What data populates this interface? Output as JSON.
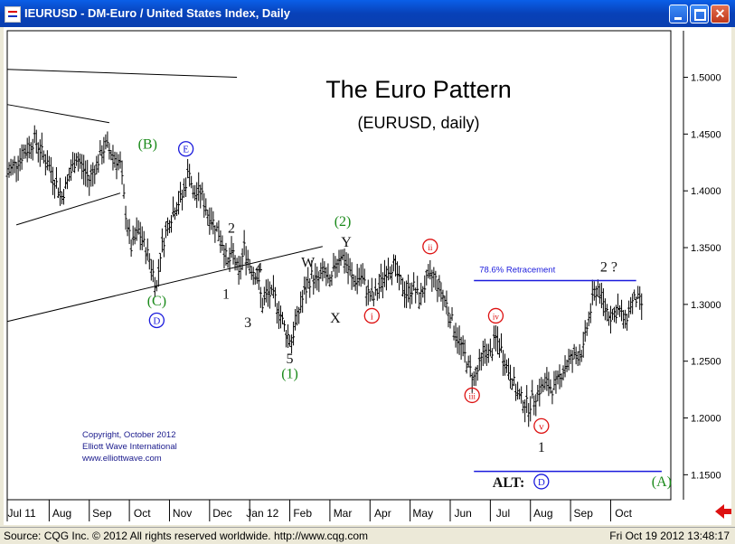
{
  "window": {
    "title": "IEURUSD - DM-Euro / United States Index, Daily"
  },
  "chart_data": {
    "type": "ohlc",
    "title": "The Euro Pattern",
    "subtitle": "(EURUSD, daily)",
    "y_ticks": [
      "1.5000",
      "1.4500",
      "1.4000",
      "1.3500",
      "1.3000",
      "1.2500",
      "1.2000",
      "1.1500"
    ],
    "x_ticks": [
      "Jul 11",
      "Aug",
      "Sep",
      "Oct",
      "Nov",
      "Dec",
      "Jan 12",
      "Feb",
      "Mar",
      "Apr",
      "May",
      "Jun",
      "Jul",
      "Aug",
      "Sep",
      "Oct"
    ],
    "ylim": [
      1.128,
      1.541
    ],
    "price_path": [
      [
        0,
        1.415
      ],
      [
        15,
        1.445
      ],
      [
        22,
        1.425
      ],
      [
        30,
        1.395
      ],
      [
        38,
        1.43
      ],
      [
        45,
        1.41
      ],
      [
        54,
        1.44
      ],
      [
        62,
        1.423
      ],
      [
        65,
        1.38
      ],
      [
        68,
        1.35
      ],
      [
        72,
        1.365
      ],
      [
        78,
        1.34
      ],
      [
        82,
        1.315
      ],
      [
        84,
        1.345
      ],
      [
        88,
        1.37
      ],
      [
        92,
        1.385
      ],
      [
        96,
        1.395
      ],
      [
        100,
        1.42
      ],
      [
        102,
        1.395
      ],
      [
        106,
        1.4
      ],
      [
        110,
        1.38
      ],
      [
        114,
        1.37
      ],
      [
        118,
        1.355
      ],
      [
        121,
        1.335
      ],
      [
        124,
        1.345
      ],
      [
        127,
        1.325
      ],
      [
        130,
        1.35
      ],
      [
        133,
        1.335
      ],
      [
        137,
        1.325
      ],
      [
        140,
        1.3
      ],
      [
        143,
        1.31
      ],
      [
        147,
        1.305
      ],
      [
        150,
        1.29
      ],
      [
        153,
        1.275
      ],
      [
        156,
        1.268
      ],
      [
        159,
        1.288
      ],
      [
        163,
        1.31
      ],
      [
        167,
        1.325
      ],
      [
        170,
        1.32
      ],
      [
        174,
        1.33
      ],
      [
        177,
        1.315
      ],
      [
        180,
        1.335
      ],
      [
        183,
        1.345
      ],
      [
        186,
        1.335
      ],
      [
        190,
        1.32
      ],
      [
        194,
        1.325
      ],
      [
        198,
        1.31
      ],
      [
        201,
        1.305
      ],
      [
        204,
        1.315
      ],
      [
        208,
        1.33
      ],
      [
        212,
        1.335
      ],
      [
        215,
        1.32
      ],
      [
        219,
        1.31
      ],
      [
        223,
        1.315
      ],
      [
        226,
        1.305
      ],
      [
        230,
        1.32
      ],
      [
        234,
        1.325
      ],
      [
        237,
        1.315
      ],
      [
        241,
        1.3
      ],
      [
        244,
        1.285
      ],
      [
        247,
        1.27
      ],
      [
        250,
        1.26
      ],
      [
        253,
        1.245
      ],
      [
        256,
        1.235
      ],
      [
        259,
        1.245
      ],
      [
        262,
        1.26
      ],
      [
        265,
        1.255
      ],
      [
        268,
        1.27
      ],
      [
        271,
        1.26
      ],
      [
        274,
        1.245
      ],
      [
        277,
        1.235
      ],
      [
        280,
        1.22
      ],
      [
        283,
        1.215
      ],
      [
        286,
        1.21
      ],
      [
        289,
        1.218
      ],
      [
        292,
        1.225
      ],
      [
        296,
        1.23
      ],
      [
        300,
        1.225
      ],
      [
        304,
        1.24
      ],
      [
        308,
        1.25
      ],
      [
        312,
        1.255
      ],
      [
        316,
        1.26
      ],
      [
        318,
        1.28
      ],
      [
        320,
        1.295
      ],
      [
        322,
        1.31
      ],
      [
        324,
        1.315
      ],
      [
        327,
        1.3
      ],
      [
        331,
        1.29
      ],
      [
        335,
        1.295
      ],
      [
        339,
        1.285
      ],
      [
        342,
        1.3
      ],
      [
        345,
        1.305
      ],
      [
        348,
        1.3
      ]
    ],
    "retracement": {
      "level": 1.321,
      "label": "78.6% Retracement"
    },
    "alt_level": 1.153,
    "copyright": [
      "Copyright, October 2012",
      "Elliott Wave International",
      "www.elliottwave.com"
    ],
    "wave_labels": [
      {
        "text": "(B)",
        "color": "#1a8a1a",
        "x": 77,
        "y": 1.437
      },
      {
        "text": "E",
        "color": "#1a1adc",
        "x": 98,
        "y": 1.433,
        "circle": true
      },
      {
        "text": "(C)",
        "color": "#1a8a1a",
        "x": 82,
        "y": 1.299
      },
      {
        "text": "D",
        "color": "#1a1adc",
        "x": 82,
        "y": 1.282,
        "circle": true
      },
      {
        "text": "2",
        "color": "#111111",
        "x": 123,
        "y": 1.363
      },
      {
        "text": "1",
        "color": "#111111",
        "x": 120,
        "y": 1.305
      },
      {
        "text": "4",
        "color": "#111111",
        "x": 138,
        "y": 1.328
      },
      {
        "text": "3",
        "color": "#111111",
        "x": 132,
        "y": 1.28
      },
      {
        "text": "5",
        "color": "#111111",
        "x": 155,
        "y": 1.248
      },
      {
        "text": "(1)",
        "color": "#1a8a1a",
        "x": 155,
        "y": 1.235
      },
      {
        "text": "W",
        "color": "#111111",
        "x": 165,
        "y": 1.333
      },
      {
        "text": "(2)",
        "color": "#1a8a1a",
        "x": 184,
        "y": 1.369
      },
      {
        "text": "Y",
        "color": "#111111",
        "x": 186,
        "y": 1.351
      },
      {
        "text": "X",
        "color": "#111111",
        "x": 180,
        "y": 1.284
      },
      {
        "text": "i",
        "color": "#dd1111",
        "x": 200,
        "y": 1.286,
        "circle": true
      },
      {
        "text": "ii",
        "color": "#dd1111",
        "x": 232,
        "y": 1.347,
        "circle": true
      },
      {
        "text": "iii",
        "color": "#dd1111",
        "x": 255,
        "y": 1.216,
        "circle": true
      },
      {
        "text": "iv",
        "color": "#dd1111",
        "x": 268,
        "y": 1.286,
        "circle": true
      },
      {
        "text": "v",
        "color": "#dd1111",
        "x": 293,
        "y": 1.189,
        "circle": true
      },
      {
        "text": "1",
        "color": "#111111",
        "x": 293,
        "y": 1.17
      },
      {
        "text": "2 ?",
        "color": "#111111",
        "x": 330,
        "y": 1.329
      },
      {
        "text": "ALT:",
        "color": "#111111",
        "x": 275,
        "y": 1.139
      },
      {
        "text": "D",
        "color": "#1a1adc",
        "x": 293,
        "y": 1.14,
        "circle": true
      },
      {
        "text": "(A)",
        "color": "#1a8a1a",
        "x": 359,
        "y": 1.14
      }
    ]
  },
  "status": {
    "source": "Source: CQG Inc. © 2012 All rights reserved worldwide. http://www.cqg.com",
    "timestamp": "Fri Oct 19 2012 13:48:17"
  },
  "colors": {
    "titlebar": "#0a5fe8",
    "retracement": "#1a1adc",
    "nav_arrow": "#dd1111"
  }
}
